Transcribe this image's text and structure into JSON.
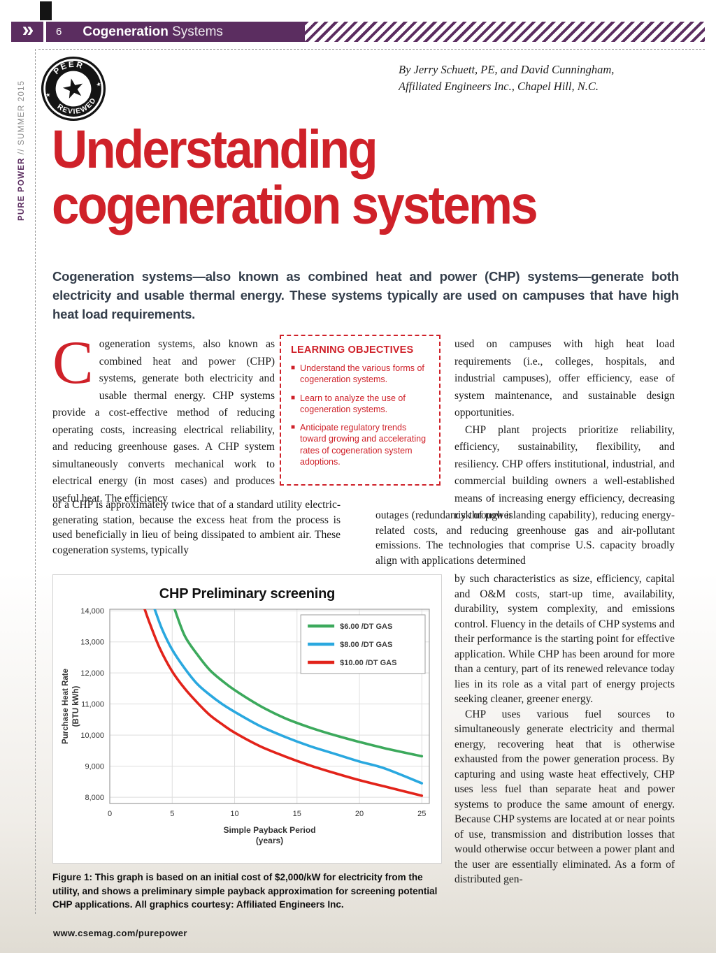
{
  "header": {
    "page_number": "6",
    "section_title": "Cogeneration",
    "section_subtitle": " Systems",
    "chevrons": "»"
  },
  "sidebar": {
    "brand": "PURE POWER",
    "issue": " // SUMMER 2015"
  },
  "badge": {
    "top": "PEER",
    "bottom": "REVIEWED",
    "star": "★"
  },
  "byline": {
    "line1": "By Jerry Schuett, PE, and David Cunningham,",
    "line2": "Affiliated Engineers Inc., Chapel Hill, N.C."
  },
  "headline": {
    "line1": "Understanding",
    "line2": "cogeneration systems"
  },
  "intro": "Cogeneration systems—also known as combined heat and power (CHP) systems—generate both electricity and usable thermal energy. These systems typically are used on campuses that have high heat load requirements.",
  "body": {
    "dropcap": "C",
    "col1_p1": "ogeneration systems, also known as combined heat and power (CHP) systems, generate both electricity and usable thermal energy. CHP systems provide a cost-effective method of reducing operating costs, increasing electrical reliability, and reducing greenhouse gases. A CHP system simultaneously converts mechanical work to electrical energy (in most cases) and produces useful heat. The efficiency",
    "col1_p2": "of a CHP is approximately twice that of a standard utility electric-generating station, because the excess heat from the process is used beneficially in lieu of being dissipated to ambient air. These cogeneration systems, typically",
    "col2_p1": "used on campuses with high heat load requirements (i.e., colleges, hospitals, and industrial campuses), offer efficiency, ease of system maintenance, and sustainable design opportunities.",
    "col2_p2": "CHP plant projects prioritize reliability, efficiency, sustainability, flexibility, and resiliency. CHP offers institutional, industrial, and commercial building owners a well-established means of increasing energy efficiency, decreasing risk of power",
    "mid_p1": "outages (redundancy through islanding capability), reducing energy-related costs, and reducing greenhouse gas and air-pollutant emissions. The technologies that comprise U.S. capacity broadly align with applications determined",
    "col3_p1": "by such characteristics as size, efficiency, capital and O&M costs, start-up time, availability, durability, system complexity, and emissions control. Fluency in the details of CHP systems and their performance is the starting point for effective application. While CHP has been around for more than a century, part of its renewed relevance today lies in its role as a vital part of energy projects seeking cleaner, greener energy.",
    "col3_p2": "CHP uses various fuel sources to simultaneously generate electricity and thermal energy, recovering heat that is otherwise exhausted from the power generation process. By capturing and using waste heat effectively, CHP uses less fuel than separate heat and power systems to produce the same amount of energy. Because CHP systems are located at or near points of use, transmission and distribution losses that would otherwise occur between a power plant and the user are essentially eliminated. As a form of distributed gen-"
  },
  "learning": {
    "title": "LEARNING OBJECTIVES",
    "bullet": "■",
    "items": [
      "Understand the various forms of cogeneration systems.",
      "Learn to analyze the use of cogeneration systems.",
      "Anticipate regulatory trends toward growing and accelerating rates of cogeneration system adoptions."
    ]
  },
  "figure": {
    "caption": "Figure 1: This graph is based on an initial cost of $2,000/kW for electricity from the utility, and shows a preliminary simple payback approximation for screening potential CHP applications. All graphics courtesy: Affiliated Engineers Inc."
  },
  "footer": {
    "url": "www.csemag.com/purepower"
  },
  "colors": {
    "accent_red": "#cf2129",
    "purple": "#5b2d60"
  },
  "chart_data": {
    "type": "line",
    "title": "CHP Preliminary screening",
    "xlabel": "Simple Payback Period",
    "xlabel2": "(years)",
    "ylabel": "Purchase Heat Rate",
    "ylabel2": "(BTU kWh)",
    "xlim": [
      0,
      25.6
    ],
    "ylim": [
      7800,
      14050
    ],
    "xticks": [
      0,
      5,
      10,
      15,
      20,
      25
    ],
    "yticks": [
      8000,
      9000,
      10000,
      11000,
      12000,
      13000,
      14000
    ],
    "ytick_labels": [
      "8,000",
      "9,000",
      "10,000",
      "11,000",
      "12,000",
      "13,000",
      "14,000"
    ],
    "grid": true,
    "legend_position": "top-right",
    "series": [
      {
        "name": "$6.00 /DT GAS",
        "color": "#3ca95c",
        "points": [
          [
            5.2,
            14050
          ],
          [
            6,
            13200
          ],
          [
            7,
            12600
          ],
          [
            8,
            12100
          ],
          [
            9,
            11750
          ],
          [
            10,
            11450
          ],
          [
            12,
            10950
          ],
          [
            14,
            10550
          ],
          [
            16,
            10250
          ],
          [
            18,
            10000
          ],
          [
            20,
            9780
          ],
          [
            22,
            9580
          ],
          [
            25,
            9320
          ]
        ]
      },
      {
        "name": "$8.00 /DT GAS",
        "color": "#2aa8df",
        "points": [
          [
            3.6,
            14050
          ],
          [
            4.2,
            13400
          ],
          [
            5,
            12750
          ],
          [
            6,
            12150
          ],
          [
            7,
            11650
          ],
          [
            8,
            11300
          ],
          [
            9,
            11000
          ],
          [
            10,
            10750
          ],
          [
            12,
            10300
          ],
          [
            14,
            9950
          ],
          [
            16,
            9650
          ],
          [
            18,
            9400
          ],
          [
            20,
            9150
          ],
          [
            22,
            8930
          ],
          [
            25,
            8450
          ]
        ]
      },
      {
        "name": "$10.00 /DT GAS",
        "color": "#e2231a",
        "points": [
          [
            2.8,
            14050
          ],
          [
            3.2,
            13600
          ],
          [
            4,
            12800
          ],
          [
            5,
            12050
          ],
          [
            6,
            11500
          ],
          [
            7,
            11050
          ],
          [
            8,
            10650
          ],
          [
            9,
            10350
          ],
          [
            10,
            10080
          ],
          [
            12,
            9650
          ],
          [
            14,
            9320
          ],
          [
            16,
            9030
          ],
          [
            18,
            8780
          ],
          [
            20,
            8550
          ],
          [
            22,
            8350
          ],
          [
            25,
            8050
          ]
        ]
      }
    ]
  }
}
